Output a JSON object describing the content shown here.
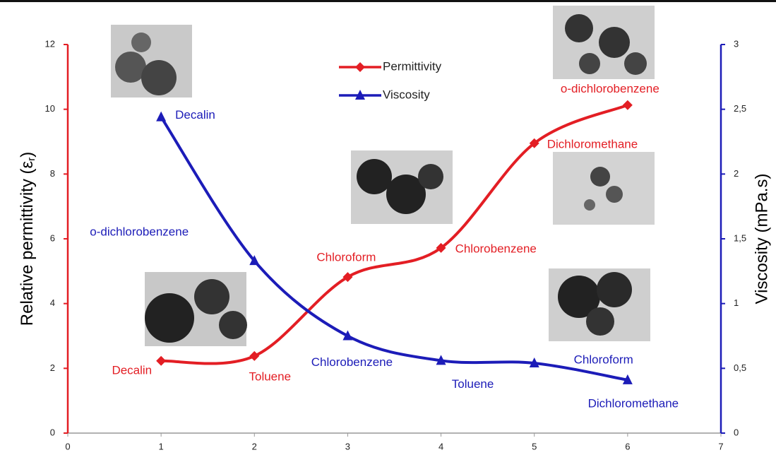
{
  "chart_data": {
    "type": "line",
    "ylabel": [
      "Relative permittivity (ε",
      "r",
      ")"
    ],
    "y2label": "Viscosity (mPa.s)",
    "x": [
      1,
      2,
      3,
      4,
      5,
      6
    ],
    "xlim": [
      0,
      7
    ],
    "xticks": [
      0,
      1,
      2,
      3,
      4,
      5,
      6,
      7
    ],
    "ylim": [
      0,
      12
    ],
    "yticks": [
      0,
      2,
      4,
      6,
      8,
      10,
      12
    ],
    "y2lim": [
      0,
      3
    ],
    "y2ticks": [
      0,
      {
        "value": 0.5,
        "label": "0,5"
      },
      1,
      {
        "value": 1.5,
        "label": "1,5"
      },
      2,
      {
        "value": 2.5,
        "label": "2,5"
      },
      3
    ],
    "series": [
      {
        "name": "Permittivity",
        "color": "#e31e24",
        "marker": "diamond",
        "values": [
          2.23,
          2.38,
          4.82,
          5.72,
          8.95,
          10.13
        ],
        "labels": [
          "Decalin",
          "Toluene",
          "Chloroform",
          "Chlorobenzene",
          "Dichloromethane",
          "o-dichlorobenzene"
        ]
      },
      {
        "name": "Viscosity",
        "color": "#1c1cb8",
        "marker": "triangle",
        "axis": "y2",
        "values": [
          2.44,
          1.33,
          0.75,
          0.56,
          0.54,
          0.41
        ],
        "labels": [
          "Decalin",
          "o-dichlorobenzene",
          "Chlorobenzene",
          "Toluene",
          "Chloroform",
          "Dichloromethane"
        ]
      }
    ]
  }
}
